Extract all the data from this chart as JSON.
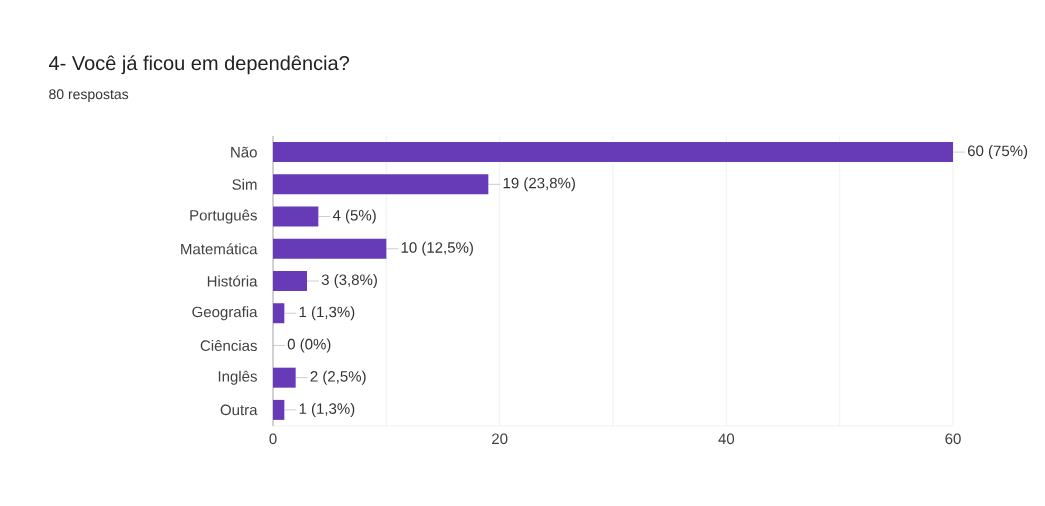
{
  "chart_data": {
    "type": "bar",
    "orientation": "horizontal",
    "title": "4- Você já ficou em dependência?",
    "subtitle": "80 respostas",
    "categories": [
      "Não",
      "Sim",
      "Português",
      "Matemática",
      "História",
      "Geografia",
      "Ciências",
      "Inglês",
      "Outra"
    ],
    "values": [
      60,
      19,
      4,
      10,
      3,
      1,
      0,
      2,
      1
    ],
    "value_labels": [
      "60 (75%)",
      "19 (23,8%)",
      "4 (5%)",
      "10 (12,5%)",
      "3 (3,8%)",
      "1 (1,3%)",
      "0 (0%)",
      "2 (2,5%)",
      "1 (1,3%)"
    ],
    "color": "#673ab7",
    "xlim": [
      0,
      60
    ],
    "xticks": [
      0,
      {
        "value": 10,
        "label": null
      },
      20,
      {
        "value": 30,
        "label": null
      },
      40,
      {
        "value": 50,
        "label": null
      },
      60
    ],
    "grid": "x"
  }
}
